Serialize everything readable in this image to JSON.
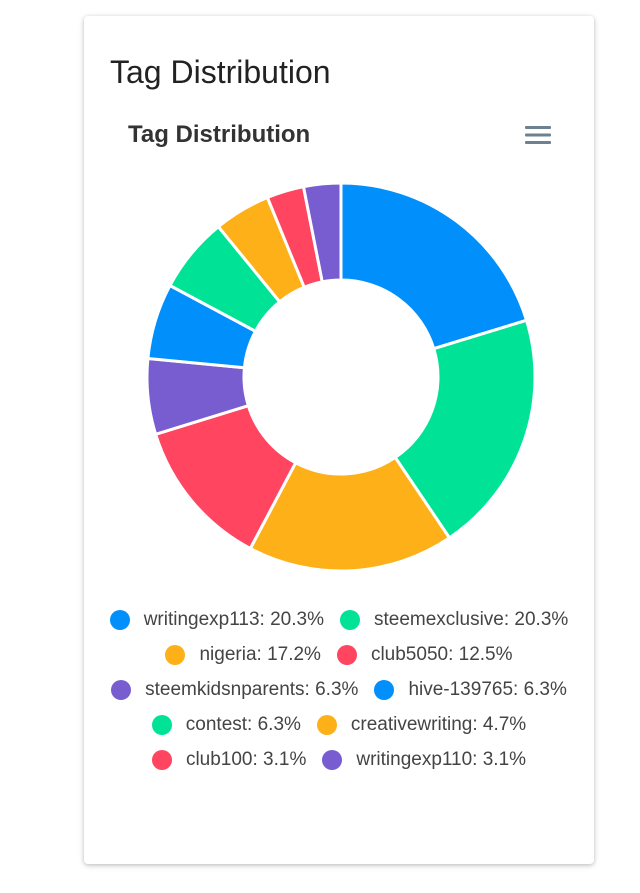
{
  "card": {
    "title": "Tag Distribution"
  },
  "chart_data": {
    "type": "pie",
    "title": "Tag Distribution",
    "donut": true,
    "legend_position": "bottom",
    "labels": [
      "writingexp113",
      "steemexclusive",
      "nigeria",
      "club5050",
      "steemkidsnparents",
      "hive-139765",
      "contest",
      "creativewriting",
      "club100",
      "writingexp110"
    ],
    "values": [
      20.3,
      20.3,
      17.2,
      12.5,
      6.3,
      6.3,
      6.3,
      4.7,
      3.1,
      3.1
    ],
    "value_suffix": "%",
    "colors": [
      "#008FFB",
      "#00E396",
      "#FEB019",
      "#FF4560",
      "#775DD0",
      "#008FFB",
      "#00E396",
      "#FEB019",
      "#FF4560",
      "#775DD0"
    ]
  },
  "menu": {
    "icon": "hamburger-menu-icon"
  }
}
